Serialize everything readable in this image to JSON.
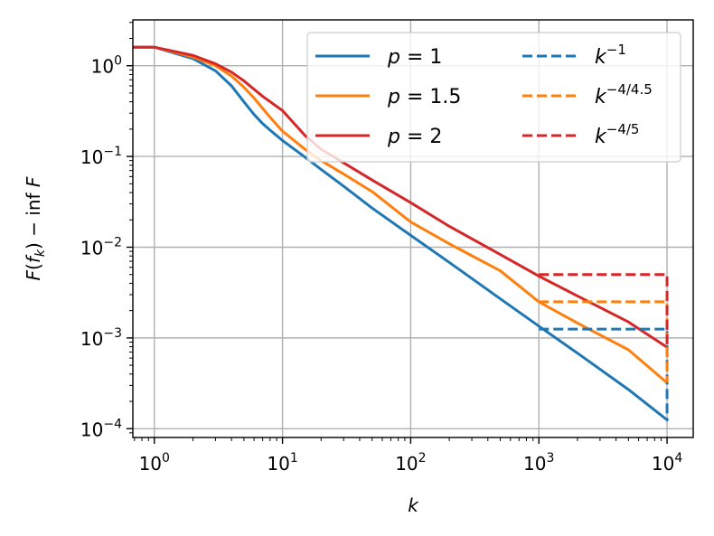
{
  "chart_data": {
    "type": "line",
    "xscale": "log",
    "yscale": "log",
    "xlim": [
      0.68,
      16000
    ],
    "ylim": [
      8e-05,
      3.2
    ],
    "grid": true,
    "legend_position": "top-right",
    "legend_columns": 2,
    "xlabel": {
      "base": "k",
      "italic": true
    },
    "ylabel": {
      "text": "F(f_k) − inf F"
    },
    "xticks": [
      {
        "value": 1,
        "base": "10",
        "exp": "0"
      },
      {
        "value": 10,
        "base": "10",
        "exp": "1"
      },
      {
        "value": 100,
        "base": "10",
        "exp": "2"
      },
      {
        "value": 1000,
        "base": "10",
        "exp": "3"
      },
      {
        "value": 10000,
        "base": "10",
        "exp": "4"
      }
    ],
    "yticks": [
      {
        "value": 0.0001,
        "base": "10",
        "exp": "−4"
      },
      {
        "value": 0.001,
        "base": "10",
        "exp": "−3"
      },
      {
        "value": 0.01,
        "base": "10",
        "exp": "−2"
      },
      {
        "value": 0.1,
        "base": "10",
        "exp": "−1"
      },
      {
        "value": 1,
        "base": "10",
        "exp": "0"
      }
    ],
    "series": [
      {
        "name": "p = 1",
        "label_lhs": "p",
        "label_rhs": "= 1",
        "color": "#1f77b4",
        "dash": "solid",
        "x": [
          0.5,
          1,
          2,
          3,
          4,
          5,
          6,
          7,
          8,
          10,
          15,
          20,
          30,
          50,
          100,
          200,
          500,
          1000,
          2000,
          5000,
          10000
        ],
        "y": [
          1.6,
          1.6,
          1.2,
          0.88,
          0.6,
          0.4,
          0.29,
          0.23,
          0.195,
          0.15,
          0.098,
          0.072,
          0.047,
          0.027,
          0.0135,
          0.0068,
          0.0027,
          0.00135,
          0.00068,
          0.00027,
          0.000125
        ]
      },
      {
        "name": "p = 1.5",
        "label_lhs": "p",
        "label_rhs": "= 1.5",
        "color": "#ff7f0e",
        "dash": "solid",
        "x": [
          0.5,
          1,
          2,
          3,
          4,
          5,
          6,
          8,
          10,
          15,
          20,
          30,
          50,
          100,
          200,
          500,
          1000,
          2000,
          5000,
          10000
        ],
        "y": [
          1.6,
          1.6,
          1.25,
          1.0,
          0.77,
          0.58,
          0.44,
          0.27,
          0.19,
          0.12,
          0.09,
          0.064,
          0.041,
          0.019,
          0.0109,
          0.0055,
          0.0025,
          0.00146,
          0.00074,
          0.00032
        ]
      },
      {
        "name": "p = 2",
        "label_lhs": "p",
        "label_rhs": "= 2",
        "color": "#d62728",
        "dash": "solid",
        "x": [
          0.5,
          1,
          2,
          3,
          4,
          5,
          7,
          10,
          15,
          20,
          30,
          50,
          100,
          200,
          500,
          1000,
          2000,
          5000,
          10000
        ],
        "y": [
          1.6,
          1.6,
          1.3,
          1.05,
          0.85,
          0.68,
          0.46,
          0.32,
          0.17,
          0.12,
          0.085,
          0.055,
          0.031,
          0.017,
          0.0083,
          0.0048,
          0.0029,
          0.0015,
          0.00079
        ]
      },
      {
        "name": "k^−1",
        "label_lhs": "k",
        "label_exp": "−1",
        "color": "#1f77b4",
        "dash": "dashed",
        "x": [
          1000,
          10000,
          10000
        ],
        "y": [
          0.00125,
          0.00125,
          0.000125
        ]
      },
      {
        "name": "k^−4/4.5",
        "label_lhs": "k",
        "label_exp": "−4/4.5",
        "color": "#ff7f0e",
        "dash": "dashed",
        "x": [
          1000,
          10000,
          10000
        ],
        "y": [
          0.0025,
          0.0025,
          0.00032
        ]
      },
      {
        "name": "k^−4/5",
        "label_lhs": "k",
        "label_exp": "−4/5",
        "color": "#d62728",
        "dash": "dashed",
        "x": [
          1000,
          10000,
          10000
        ],
        "y": [
          0.005,
          0.005,
          0.00079
        ]
      }
    ]
  }
}
